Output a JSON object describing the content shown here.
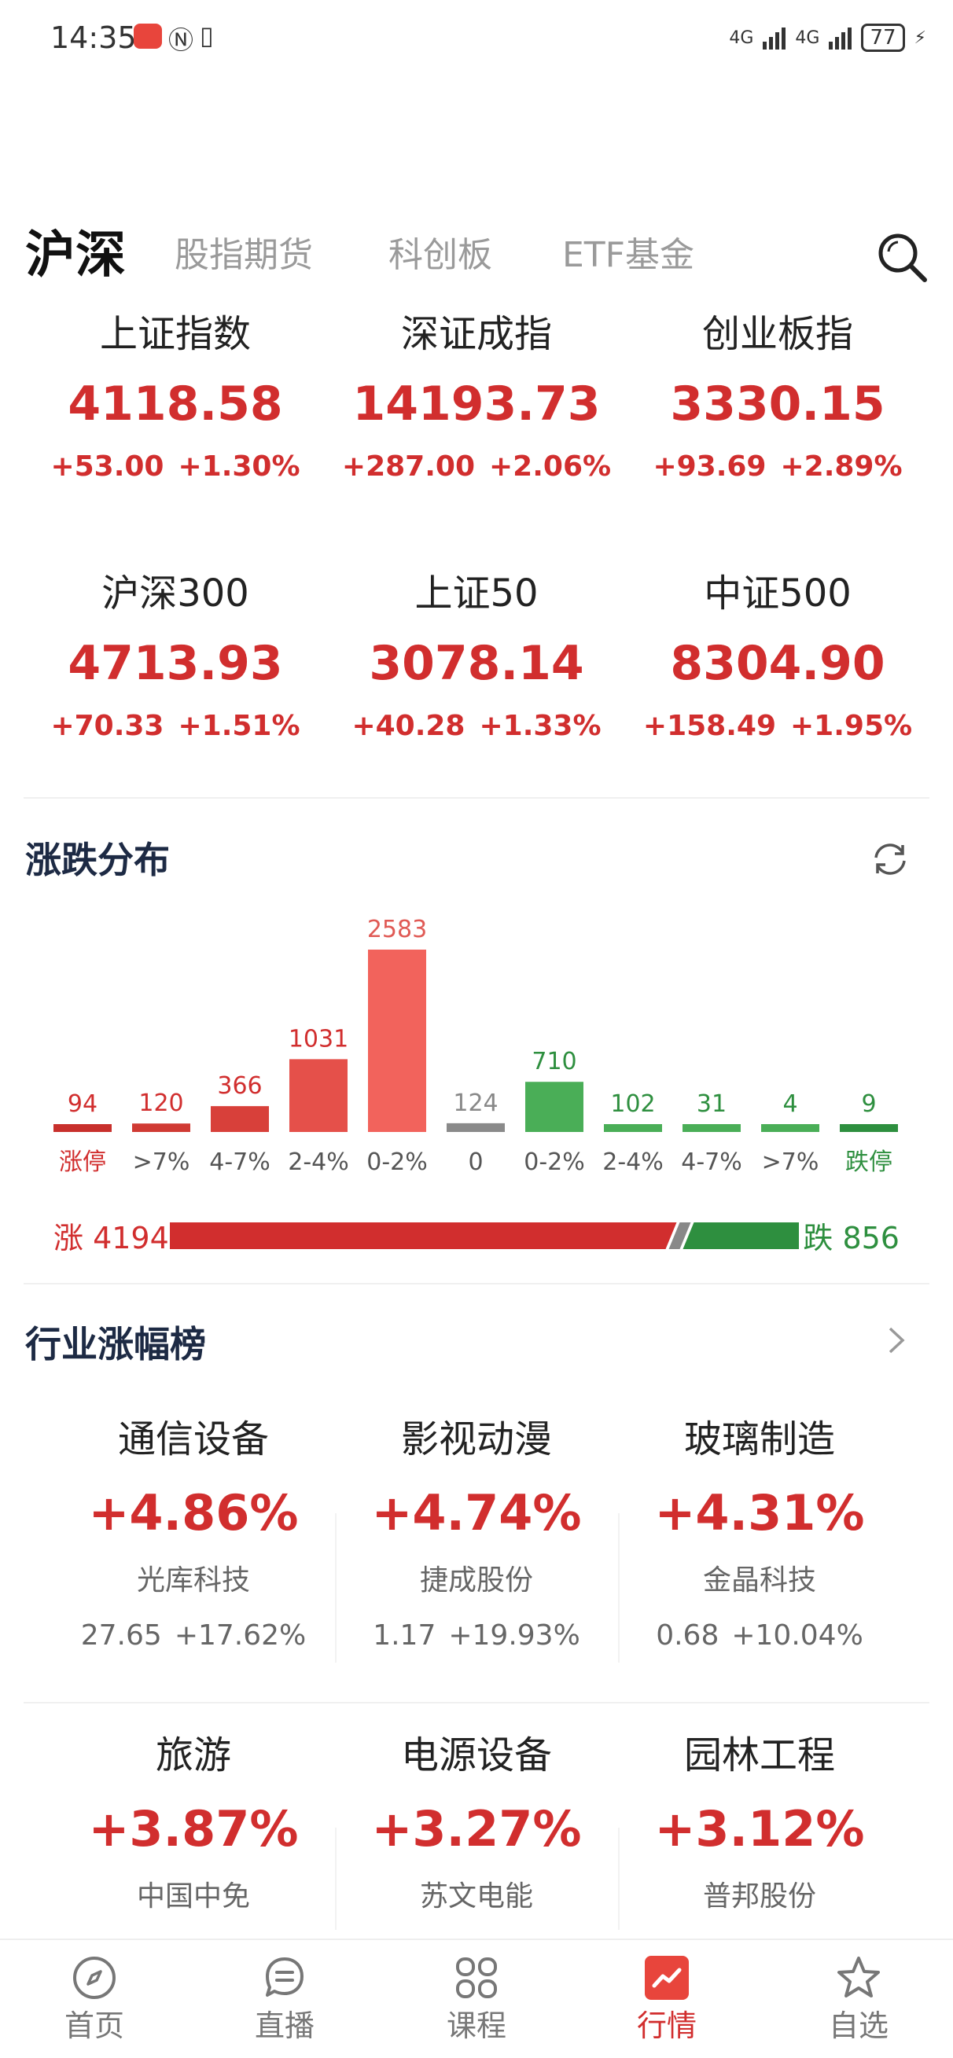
{
  "status_bar": {
    "time": "14:35",
    "network1": "4G",
    "network2": "4G",
    "battery": "77"
  },
  "tabs": [
    "沪深",
    "股指期货",
    "科创板",
    "ETF基金"
  ],
  "active_tab": "沪深",
  "indices": [
    {
      "name": "上证指数",
      "value": "4118.58",
      "change": "+53.00",
      "pct": "+1.30%"
    },
    {
      "name": "深证成指",
      "value": "14193.73",
      "change": "+287.00",
      "pct": "+2.06%"
    },
    {
      "name": "创业板指",
      "value": "3330.15",
      "change": "+93.69",
      "pct": "+2.89%"
    },
    {
      "name": "沪深300",
      "value": "4713.93",
      "change": "+70.33",
      "pct": "+1.51%"
    },
    {
      "name": "上证50",
      "value": "3078.14",
      "change": "+40.28",
      "pct": "+1.33%"
    },
    {
      "name": "中证500",
      "value": "8304.90",
      "change": "+158.49",
      "pct": "+1.95%"
    }
  ],
  "distribution": {
    "title": "涨跌分布",
    "up_total_label": "涨 4194",
    "down_total_label": "跌 856"
  },
  "chart_data": {
    "type": "bar",
    "categories": [
      "涨停",
      ">7%",
      "4-7%",
      "2-4%",
      "0-2%",
      "0",
      "0-2%",
      "2-4%",
      "4-7%",
      ">7%",
      "跌停"
    ],
    "values": [
      94,
      120,
      366,
      1031,
      2583,
      124,
      710,
      102,
      31,
      4,
      9
    ],
    "colors": [
      "#c8302c",
      "#d03a33",
      "#d8403a",
      "#e5504a",
      "#f2635c",
      "#8a8a8a",
      "#4aae57",
      "#4aae57",
      "#4aae57",
      "#4aae57",
      "#2e8f3f"
    ],
    "label_colors": [
      "#d12e2e",
      "#d12e2e",
      "#d12e2e",
      "#d12e2e",
      "#e05a55",
      "#888888",
      "#2e8f3f",
      "#2e8f3f",
      "#2e8f3f",
      "#2e8f3f",
      "#2e8f3f"
    ],
    "category_label_colors": [
      "#d12e2e",
      "#555555",
      "#555555",
      "#555555",
      "#555555",
      "#555555",
      "#555555",
      "#555555",
      "#555555",
      "#555555",
      "#2e8f3f"
    ],
    "ratio": {
      "up": 4194,
      "down": 856
    }
  },
  "industry": {
    "title": "行业涨幅榜",
    "items": [
      {
        "name": "通信设备",
        "pct": "+4.86%",
        "stock": "光库科技",
        "price": "27.65",
        "stock_pct": "+17.62%"
      },
      {
        "name": "影视动漫",
        "pct": "+4.74%",
        "stock": "捷成股份",
        "price": "1.17",
        "stock_pct": "+19.93%"
      },
      {
        "name": "玻璃制造",
        "pct": "+4.31%",
        "stock": "金晶科技",
        "price": "0.68",
        "stock_pct": "+10.04%"
      },
      {
        "name": "旅游",
        "pct": "+3.87%",
        "stock": "中国中免"
      },
      {
        "name": "电源设备",
        "pct": "+3.27%",
        "stock": "苏文电能"
      },
      {
        "name": "园林工程",
        "pct": "+3.12%",
        "stock": "普邦股份"
      }
    ]
  },
  "bottom_nav": [
    {
      "label": "首页",
      "icon": "compass-icon"
    },
    {
      "label": "直播",
      "icon": "chat-bubble-icon"
    },
    {
      "label": "课程",
      "icon": "grid-icon"
    },
    {
      "label": "行情",
      "icon": "market-chart-icon",
      "active": true
    },
    {
      "label": "自选",
      "icon": "star-icon"
    }
  ],
  "colors": {
    "up": "#d12e2e",
    "down": "#2e8f3f",
    "flat": "#888888"
  }
}
